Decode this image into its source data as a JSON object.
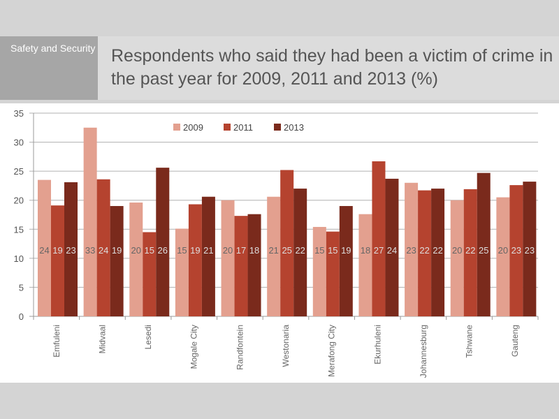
{
  "section": "Safety and Security",
  "title": "Respondents who said they had been a victim of crime in the past year for 2009, 2011 and 2013 (%)",
  "colors": {
    "2009": "#e3a08f",
    "2011": "#b5432f",
    "2013": "#7a2a1c"
  },
  "chart_data": {
    "type": "bar",
    "title": "Respondents who said they had been a victim of crime in the past year for 2009, 2011 and 2013 (%)",
    "xlabel": "",
    "ylabel": "",
    "ylim": [
      0,
      35
    ],
    "yticks": [
      0,
      5,
      10,
      15,
      20,
      25,
      30,
      35
    ],
    "grid": true,
    "legend_position": "top-center",
    "categories": [
      "Emfuleni",
      "Midvaal",
      "Lesedi",
      "Mogale City",
      "Randfontein",
      "Westonaria",
      "Merafong City",
      "Ekurhuleni",
      "Johannesburg",
      "Tshwane",
      "Gauteng"
    ],
    "series": [
      {
        "name": "2009",
        "values": [
          23.5,
          32.5,
          19.6,
          15.1,
          20.0,
          20.6,
          15.4,
          17.6,
          23.0,
          20.0,
          20.5
        ],
        "labels": [
          "24",
          "33",
          "20",
          "15",
          "20",
          "21",
          "15",
          "18",
          "23",
          "20",
          "20"
        ]
      },
      {
        "name": "2011",
        "values": [
          19.1,
          23.6,
          14.5,
          19.3,
          17.3,
          25.2,
          14.6,
          26.7,
          21.7,
          21.9,
          22.6
        ],
        "labels": [
          "19",
          "24",
          "15",
          "19",
          "17",
          "25",
          "15",
          "27",
          "22",
          "22",
          "23"
        ]
      },
      {
        "name": "2013",
        "values": [
          23.1,
          19.0,
          25.6,
          20.6,
          17.6,
          22.0,
          19.0,
          23.7,
          22.0,
          24.7,
          23.2
        ],
        "labels": [
          "23",
          "19",
          "26",
          "21",
          "18",
          "22",
          "19",
          "24",
          "22",
          "25",
          "23"
        ]
      }
    ]
  }
}
